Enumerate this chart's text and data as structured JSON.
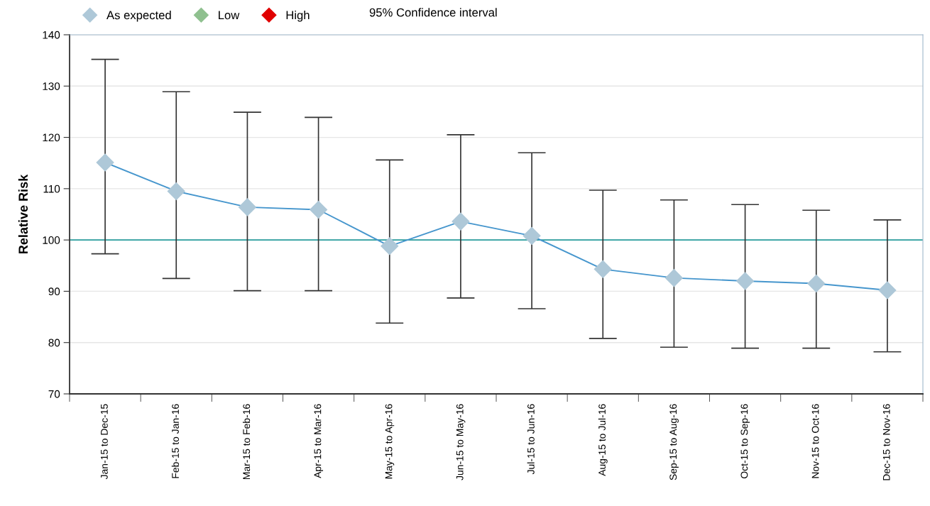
{
  "chart_data": {
    "type": "line",
    "ylabel": "Relative Risk",
    "categories": [
      "Jan-15 to Dec-15",
      "Feb-15 to Jan-16",
      "Mar-15 to Feb-16",
      "Apr-15 to Mar-16",
      "May-15 to Apr-16",
      "Jun-15 to May-16",
      "Jul-15 to Jun-16",
      "Aug-15 to Jul-16",
      "Sep-15 to Aug-16",
      "Oct-15 to Sep-16",
      "Nov-15 to Oct-16",
      "Dec-15 to Nov-16"
    ],
    "series": [
      {
        "name": "As expected",
        "color": "#aec8d8",
        "values": [
          115.1,
          109.5,
          106.4,
          105.9,
          98.8,
          103.6,
          100.8,
          94.3,
          92.6,
          92.0,
          91.5,
          90.2
        ],
        "errors": [
          [
            97.3,
            135.2
          ],
          [
            92.5,
            128.9
          ],
          [
            90.1,
            124.9
          ],
          [
            90.1,
            123.9
          ],
          [
            83.8,
            115.6
          ],
          [
            88.7,
            120.5
          ],
          [
            86.6,
            117.0
          ],
          [
            80.8,
            109.7
          ],
          [
            79.1,
            107.8
          ],
          [
            78.9,
            106.9
          ],
          [
            78.9,
            105.8
          ],
          [
            78.2,
            103.9
          ]
        ]
      },
      {
        "name": "Low",
        "color": "#8fc08f",
        "values": [
          null,
          null,
          null,
          null,
          null,
          null,
          null,
          null,
          null,
          null,
          null,
          null
        ]
      },
      {
        "name": "High",
        "color": "#e00000",
        "values": [
          null,
          null,
          null,
          null,
          null,
          null,
          null,
          null,
          null,
          null,
          null,
          null
        ]
      }
    ],
    "marker": "diamond",
    "ylim": [
      70,
      140
    ],
    "yticks": [
      70,
      80,
      90,
      100,
      110,
      120,
      130,
      140
    ],
    "grid": "y",
    "legend": "top left",
    "ref_lines": [
      {
        "axis": "y",
        "value": 100,
        "color": "#2a9d9d"
      }
    ],
    "annotations": [
      "95% Confidence interval"
    ]
  }
}
